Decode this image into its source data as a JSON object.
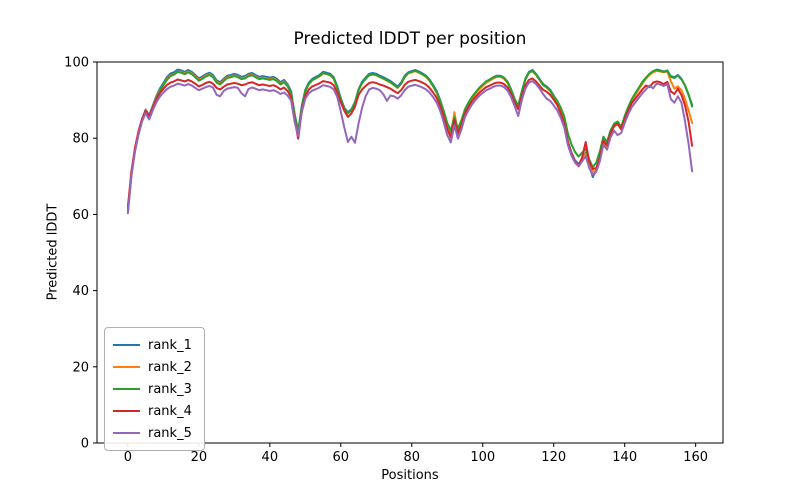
{
  "chart_data": {
    "type": "line",
    "title": "Predicted lDDT per position",
    "xlabel": "Positions",
    "ylabel": "Predicted lDDT",
    "xlim": [
      -8.7,
      167.7
    ],
    "ylim": [
      0,
      100
    ],
    "x_ticks": [
      0,
      20,
      40,
      60,
      80,
      100,
      120,
      140,
      160
    ],
    "y_ticks": [
      0,
      20,
      40,
      60,
      80,
      100
    ],
    "grid": false,
    "legend_position": "lower left",
    "x_start": 0,
    "x_step": 1,
    "n_points": 160,
    "series": [
      {
        "name": "rank_1",
        "color": "#1f77b4",
        "values": [
          61,
          70.5,
          77,
          81.5,
          85,
          87.5,
          86,
          88.5,
          91,
          93,
          94.5,
          96,
          97,
          97.3,
          98,
          97.8,
          97.4,
          97.9,
          97.4,
          96.6,
          95.7,
          96.2,
          96.8,
          97.2,
          96.6,
          95.2,
          94.7,
          95.6,
          96.4,
          96.6,
          96.9,
          96.6,
          96.1,
          96.3,
          96.9,
          97.1,
          96.6,
          96.1,
          96.3,
          96.1,
          95.9,
          96.1,
          95.6,
          94.7,
          95.3,
          94.2,
          92.3,
          86,
          81.8,
          88.5,
          92.7,
          94.6,
          95.6,
          96.1,
          96.6,
          97.4,
          97.2,
          96.9,
          96,
          93.6,
          90.5,
          88,
          86.8,
          87.6,
          89.5,
          92.8,
          94.8,
          95.9,
          96.9,
          97.1,
          96.9,
          96.4,
          96,
          95.5,
          95,
          94.3,
          93.6,
          94.6,
          96.4,
          97.3,
          97.6,
          97.9,
          97.5,
          97,
          96.4,
          95.4,
          94,
          92.4,
          90,
          87,
          83.5,
          81,
          85.8,
          82,
          84.5,
          87.5,
          89.3,
          90.8,
          92,
          93.1,
          94,
          94.9,
          95.4,
          96,
          96.4,
          96.4,
          95.9,
          94.8,
          92.8,
          90.3,
          88.3,
          92.3,
          95.6,
          97.4,
          97.9,
          96.9,
          95.6,
          94.2,
          93.6,
          92.7,
          91.2,
          89.6,
          87.2,
          84.2,
          79.2,
          76.2,
          74.2,
          73.2,
          74.6,
          76.2,
          72.8,
          69.8,
          71.8,
          74.8,
          79.3,
          78,
          81.4,
          83.4,
          84,
          82.6,
          85.5,
          88,
          90.1,
          91.6,
          93.1,
          94.6,
          95.8,
          96.8,
          97.5,
          98,
          97.8,
          97.5,
          97.8,
          96.3,
          96,
          96.6,
          95.6,
          93.8,
          91.3,
          88.8
        ]
      },
      {
        "name": "rank_2",
        "color": "#ff7f0e",
        "values": [
          61.5,
          70.8,
          77.2,
          81.6,
          85,
          87.3,
          85.7,
          88.2,
          90.6,
          92.6,
          94,
          95.5,
          96.5,
          96.8,
          97.5,
          97.4,
          97,
          97.5,
          97,
          96.2,
          95.3,
          95.8,
          96.4,
          96.8,
          96.2,
          94.8,
          94.3,
          95.2,
          96,
          96.2,
          96.5,
          96.2,
          95.7,
          95.9,
          96.5,
          96.7,
          96.2,
          95.7,
          95.9,
          95.7,
          95.5,
          95.7,
          95.2,
          94.3,
          94.9,
          93.8,
          91.7,
          85.2,
          79.9,
          87.8,
          92.2,
          94.2,
          95.2,
          95.7,
          96.2,
          97,
          96.8,
          96.5,
          95.6,
          93.2,
          90.1,
          87.7,
          86.5,
          87.3,
          89.2,
          92.5,
          94.4,
          95.5,
          96.5,
          96.7,
          96.5,
          96,
          95.6,
          95.1,
          94.6,
          93.9,
          93.2,
          94.2,
          96,
          97,
          97.3,
          97.6,
          97.2,
          96.7,
          96.1,
          95.1,
          93.6,
          92,
          89.5,
          86.4,
          82.8,
          80.3,
          86.8,
          81.4,
          84,
          87.2,
          89,
          90.5,
          91.7,
          92.8,
          93.7,
          94.6,
          95.1,
          95.7,
          96.1,
          96.1,
          95.6,
          94.5,
          92.5,
          90,
          87.9,
          92,
          95.3,
          97.1,
          97.6,
          96.6,
          95.3,
          93.9,
          93.3,
          92.4,
          90.9,
          89.3,
          86.9,
          83.9,
          78.9,
          75.9,
          73.9,
          72.9,
          74.3,
          75.9,
          72.5,
          71.2,
          71.5,
          74.5,
          79,
          77.7,
          81.1,
          83.1,
          83.7,
          82.3,
          85.2,
          87.7,
          89.8,
          91.3,
          92.8,
          94.3,
          95.6,
          96.6,
          97.3,
          97.7,
          97.5,
          97.3,
          97.5,
          95,
          93,
          93.6,
          92.6,
          90.3,
          87.3,
          84
        ]
      },
      {
        "name": "rank_3",
        "color": "#2ca02c",
        "values": [
          60.8,
          70.3,
          76.8,
          81.2,
          84.7,
          87.1,
          85.5,
          88,
          90.4,
          92.4,
          93.9,
          95.3,
          96.3,
          96.7,
          97.4,
          97.2,
          96.8,
          97.3,
          96.8,
          96,
          95.1,
          95.6,
          96.2,
          96.6,
          96,
          94.6,
          94.1,
          95,
          95.8,
          96,
          96.3,
          96,
          95.5,
          95.7,
          96.3,
          96.5,
          96,
          95.5,
          95.7,
          95.5,
          95.3,
          95.5,
          95,
          94.1,
          94.7,
          93.6,
          91.9,
          86.3,
          81.9,
          88.2,
          92.4,
          94.3,
          95.3,
          95.8,
          96.3,
          97.1,
          96.9,
          96.6,
          95.7,
          93.3,
          90.2,
          87.8,
          86.6,
          87.4,
          89.3,
          92.6,
          94.5,
          95.6,
          96.6,
          96.8,
          96.6,
          96.1,
          95.7,
          95.2,
          94.7,
          94,
          93.3,
          94.3,
          96.1,
          97.1,
          97.4,
          97.7,
          97.3,
          96.8,
          96.2,
          95.2,
          93.7,
          92.1,
          89.8,
          87.2,
          84,
          82,
          85.5,
          82.5,
          84.8,
          87.6,
          89.4,
          90.9,
          92.1,
          93.2,
          94.1,
          94.9,
          95.4,
          95.9,
          96.3,
          96.3,
          95.8,
          94.7,
          92.7,
          90.2,
          88.5,
          92.2,
          95.4,
          97.2,
          97.7,
          96.7,
          95.4,
          94,
          93.4,
          92.5,
          91,
          89.8,
          88,
          85.6,
          81.2,
          78.4,
          76.4,
          75.2,
          76.2,
          77.2,
          74.4,
          72.4,
          73.6,
          76.6,
          80.4,
          79,
          82,
          83.8,
          84.4,
          83,
          85.8,
          88.2,
          90.3,
          91.8,
          93.3,
          94.8,
          95.9,
          96.9,
          97.6,
          97.9,
          97.7,
          97.4,
          97.7,
          96.1,
          95.8,
          96.4,
          95.4,
          93.9,
          91.5,
          88.3
        ]
      },
      {
        "name": "rank_4",
        "color": "#d62728",
        "values": [
          62,
          71.2,
          77.5,
          81.8,
          85.1,
          87.2,
          85.8,
          88,
          90.2,
          91.8,
          93,
          94,
          94.6,
          94.9,
          95.4,
          95.2,
          94.9,
          95.3,
          94.9,
          94.3,
          93.6,
          94,
          94.5,
          94.8,
          94.3,
          93.2,
          92.8,
          93.5,
          94.1,
          94.3,
          94.5,
          94.3,
          93.9,
          94.1,
          94.5,
          94.7,
          94.3,
          93.9,
          94.1,
          93.9,
          93.7,
          93.9,
          93.5,
          92.8,
          93.3,
          92.4,
          90.8,
          84.8,
          79.9,
          87.2,
          91.2,
          92.8,
          93.6,
          94,
          94.4,
          95,
          94.8,
          94.6,
          93.9,
          92,
          89.4,
          87.2,
          85.6,
          86.5,
          88.3,
          91.3,
          92.8,
          93.7,
          94.5,
          94.7,
          94.5,
          94.1,
          93.8,
          93.4,
          93,
          92.4,
          91.8,
          92.6,
          94,
          94.8,
          95.1,
          95.3,
          95,
          94.6,
          94.1,
          93.2,
          92,
          90.6,
          88.5,
          85.8,
          82.4,
          80.2,
          84.8,
          81.2,
          83.6,
          86.6,
          88.4,
          89.8,
          90.9,
          91.9,
          92.7,
          93.4,
          93.8,
          94.3,
          94.6,
          94.6,
          94.2,
          93.3,
          91.6,
          89.4,
          87.6,
          91,
          93.8,
          95.3,
          95.7,
          94.9,
          93.8,
          92.7,
          92.2,
          91.4,
          90.1,
          88.7,
          86.5,
          83.7,
          78.9,
          75.9,
          73.9,
          72.8,
          74.9,
          79,
          74,
          71.9,
          72.2,
          75,
          79.4,
          78.1,
          81.3,
          83.2,
          83.8,
          82.4,
          85,
          87.3,
          89.2,
          90.4,
          91.6,
          92.8,
          93.8,
          93.4,
          94.6,
          94.9,
          94.7,
          94.2,
          94.8,
          92.3,
          91.6,
          93,
          91.3,
          88.6,
          84.3,
          78
        ]
      },
      {
        "name": "rank_5",
        "color": "#9467bd",
        "values": [
          60.3,
          70,
          76.5,
          80.9,
          84.4,
          86.6,
          84.9,
          87.3,
          89.4,
          90.9,
          92,
          92.9,
          93.5,
          93.8,
          94.3,
          94.1,
          93.8,
          94.2,
          93.8,
          93.2,
          92.6,
          93,
          93.4,
          93.7,
          93.3,
          91.4,
          91,
          92.4,
          93,
          93.2,
          93.4,
          93.2,
          91.8,
          91,
          92.9,
          93.3,
          93,
          92.6,
          92.8,
          92.6,
          92.4,
          92.6,
          92.2,
          91.6,
          92,
          91.2,
          89.9,
          84.2,
          80.6,
          86.8,
          90.4,
          91.8,
          92.5,
          92.9,
          93.3,
          93.9,
          93.7,
          93.5,
          92.8,
          90.8,
          87,
          82.8,
          79,
          80.4,
          78.8,
          83.8,
          88,
          91,
          92.8,
          93.2,
          93,
          92.6,
          91.5,
          89.8,
          91.2,
          91,
          90.4,
          91.2,
          92.6,
          93.5,
          93.8,
          94,
          93.7,
          93.3,
          92.8,
          92,
          90.8,
          89.4,
          87.2,
          84.2,
          80.8,
          78.9,
          83.4,
          79.9,
          82.4,
          85.6,
          87.4,
          88.9,
          90.1,
          91.1,
          91.9,
          92.6,
          93,
          93.5,
          93.8,
          93.8,
          93.4,
          92.5,
          90.8,
          88.4,
          85.8,
          90,
          93,
          94.6,
          95,
          94.2,
          93.1,
          91.6,
          90.4,
          89.8,
          88.6,
          87.3,
          85.3,
          82.7,
          78.2,
          75.4,
          73.6,
          72.6,
          73.9,
          75.3,
          72.2,
          70.4,
          71.2,
          74,
          78.3,
          77,
          80.2,
          82,
          80.8,
          81.4,
          84,
          86.3,
          88.2,
          89.4,
          90.6,
          91.8,
          92.8,
          93.8,
          93.1,
          94.3,
          94.1,
          93.7,
          94.2,
          90.3,
          89.3,
          91,
          89.3,
          84.5,
          78.5,
          71.3
        ]
      }
    ]
  }
}
